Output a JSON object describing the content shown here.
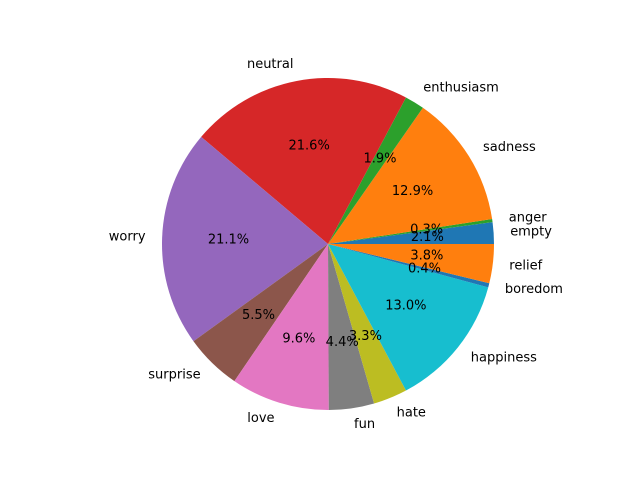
{
  "chart_data": {
    "type": "pie",
    "title": "",
    "start_angle_deg": 0,
    "direction": "counterclockwise",
    "slices": [
      {
        "label": "empty",
        "value": 2.1,
        "pct_label": "2.1%",
        "color": "#1f77b4"
      },
      {
        "label": "anger",
        "value": 0.3,
        "pct_label": "0.3%",
        "color": "#2ca02c"
      },
      {
        "label": "sadness",
        "value": 12.9,
        "pct_label": "12.9%",
        "color": "#ff7f0e"
      },
      {
        "label": "enthusiasm",
        "value": 1.9,
        "pct_label": "1.9%",
        "color": "#2ca02c"
      },
      {
        "label": "neutral",
        "value": 21.6,
        "pct_label": "21.6%",
        "color": "#d62728"
      },
      {
        "label": "worry",
        "value": 21.1,
        "pct_label": "21.1%",
        "color": "#9467bd"
      },
      {
        "label": "surprise",
        "value": 5.5,
        "pct_label": "5.5%",
        "color": "#8c564b"
      },
      {
        "label": "love",
        "value": 9.6,
        "pct_label": "9.6%",
        "color": "#e377c2"
      },
      {
        "label": "fun",
        "value": 4.4,
        "pct_label": "4.4%",
        "color": "#7f7f7f"
      },
      {
        "label": "hate",
        "value": 3.3,
        "pct_label": "3.3%",
        "color": "#bcbd22"
      },
      {
        "label": "happiness",
        "value": 13.0,
        "pct_label": "13.0%",
        "color": "#17becf"
      },
      {
        "label": "boredom",
        "value": 0.4,
        "pct_label": "0.4%",
        "color": "#1f77b4"
      },
      {
        "label": "relief",
        "value": 3.8,
        "pct_label": "3.8%",
        "color": "#ff7f0e"
      }
    ]
  }
}
